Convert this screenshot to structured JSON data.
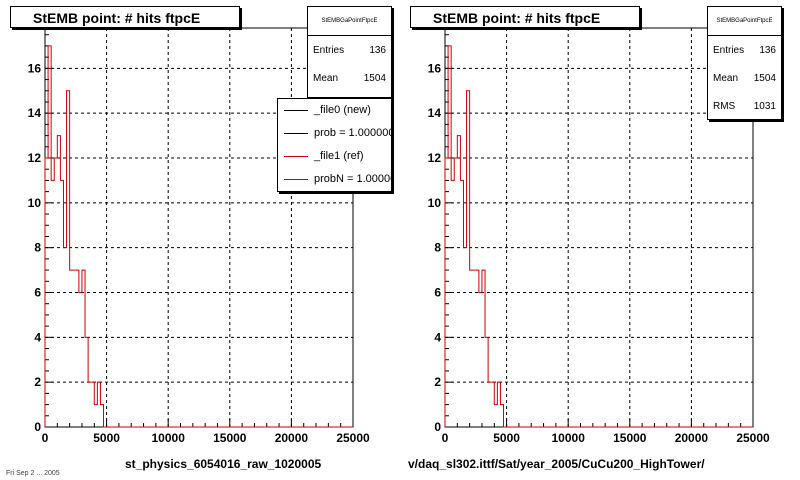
{
  "footer_text": "Fri Sep  2 ... 2005",
  "colors": {
    "ref": "#cc0000",
    "new": "#000000",
    "grid": "#000000"
  },
  "panels": [
    {
      "title": "StEMB point: # hits ftpcE",
      "stats": {
        "header": "StEMBGaPointFtpcE",
        "rows": [
          {
            "label": "Entries",
            "value": "136"
          },
          {
            "label": "Mean",
            "value": "1504"
          }
        ]
      },
      "legend": [
        {
          "label": "_file0 (new)",
          "color": "#000000"
        },
        {
          "label": "prob = 1.000000",
          "color": "#000000"
        },
        {
          "label": "_file1 (ref)",
          "color": "#cc0000"
        },
        {
          "label": "probN = 1.000000",
          "color": "#cc0000"
        }
      ],
      "xtitle": "st_physics_6054016_raw_1020005"
    },
    {
      "title": "StEMB point: # hits ftpcE",
      "stats": {
        "header": "StEMBGaPointFtpcE",
        "rows": [
          {
            "label": "Entries",
            "value": "136"
          },
          {
            "label": "Mean",
            "value": "1504"
          },
          {
            "label": "RMS",
            "value": "1031"
          }
        ]
      },
      "legend": [],
      "xtitle": "v/daq_sl302.ittf/Sat/year_2005/CuCu200_HighTower/"
    }
  ],
  "chart_data": [
    {
      "type": "histogram",
      "title": "StEMB point: # hits ftpcE",
      "xlim": [
        0,
        25000
      ],
      "ylim": [
        0,
        17.8
      ],
      "xticks": [
        0,
        5000,
        10000,
        15000,
        20000,
        25000
      ],
      "yticks": [
        0,
        2,
        4,
        6,
        8,
        10,
        12,
        14,
        16
      ],
      "grid": true,
      "series": [
        {
          "name": "_file1 (ref)",
          "color": "#cc0000",
          "bin_edges": [
            0,
            250,
            500,
            750,
            1000,
            1250,
            1500,
            1750,
            2000,
            2250,
            2500,
            2750,
            3000,
            3250,
            3500,
            3750,
            4000,
            4250,
            4500,
            4750,
            5000
          ],
          "counts": [
            12,
            17,
            11,
            12,
            13,
            11,
            8,
            15,
            7,
            7,
            7,
            6,
            7,
            4,
            2,
            2,
            1,
            2,
            1,
            0
          ]
        }
      ]
    },
    {
      "type": "histogram",
      "title": "StEMB point: # hits ftpcE",
      "xlim": [
        0,
        25000
      ],
      "ylim": [
        0,
        17.8
      ],
      "xticks": [
        0,
        5000,
        10000,
        15000,
        20000,
        25000
      ],
      "yticks": [
        0,
        2,
        4,
        6,
        8,
        10,
        12,
        14,
        16
      ],
      "grid": true,
      "series": [
        {
          "name": "_file1 (ref)",
          "color": "#cc0000",
          "bin_edges": [
            0,
            250,
            500,
            750,
            1000,
            1250,
            1500,
            1750,
            2000,
            2250,
            2500,
            2750,
            3000,
            3250,
            3500,
            3750,
            4000,
            4250,
            4500,
            4750,
            5000
          ],
          "counts": [
            12,
            17,
            11,
            12,
            13,
            11,
            8,
            15,
            7,
            7,
            7,
            6,
            7,
            4,
            2,
            2,
            1,
            2,
            1,
            0
          ]
        }
      ]
    }
  ]
}
